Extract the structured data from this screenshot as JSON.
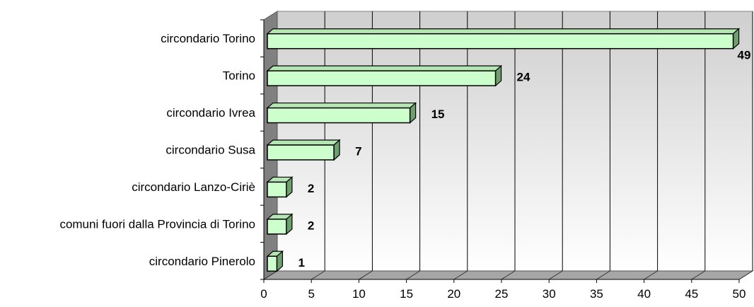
{
  "chart_data": {
    "type": "bar",
    "orientation": "horizontal",
    "three_d": true,
    "categories": [
      "circondario Torino",
      "Torino",
      "circondario Ivrea",
      "circondario Susa",
      "circondario Lanzo-Ciriè",
      "comuni fuori dalla Provincia di Torino",
      "circondario Pinerolo"
    ],
    "values": [
      49,
      24,
      15,
      7,
      2,
      2,
      1
    ],
    "data_labels": [
      "49",
      "24",
      "15",
      "7",
      "2",
      "2",
      "1"
    ],
    "xlim": [
      0,
      50
    ],
    "x_ticks": [
      "0",
      "5",
      "10",
      "15",
      "20",
      "25",
      "30",
      "35",
      "40",
      "45",
      "50"
    ],
    "title": "",
    "xlabel": "",
    "ylabel": "",
    "grid": true,
    "legend": "none",
    "colors": {
      "bar_front": "#ccffcc",
      "bar_top": "#b3e6b3",
      "bar_side": "#6f9f6f",
      "bar_outline": "#000000",
      "back_wall_top": "#cfcfcf",
      "back_wall_bottom": "#ffffff",
      "left_wall": "#808080",
      "floor": "#a6a6a6",
      "gridline": "#000000"
    }
  }
}
